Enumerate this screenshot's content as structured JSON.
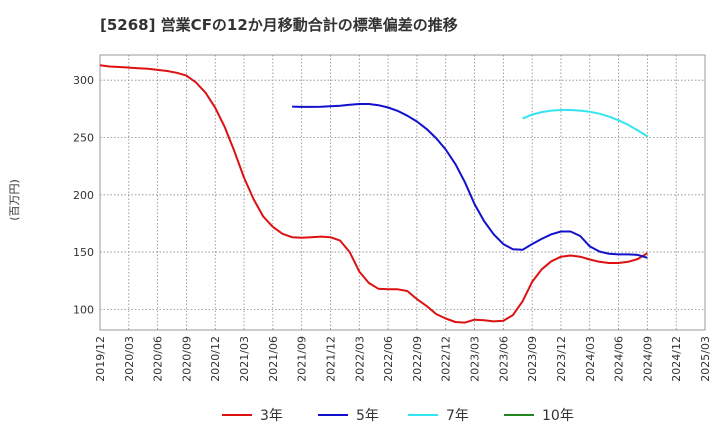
{
  "chart_data": {
    "type": "line",
    "title": "[5268]  営業CFの12か月移動合計の標準偏差の推移",
    "ylabel": "(百万円)",
    "xlabel": "",
    "ylim": [
      82,
      322
    ],
    "yticks": [
      100,
      150,
      200,
      250,
      300
    ],
    "xlim": [
      "2019-12",
      "2025-03"
    ],
    "xticks": [
      "2019/12",
      "2020/03",
      "2020/06",
      "2020/09",
      "2020/12",
      "2021/03",
      "2021/06",
      "2021/09",
      "2021/12",
      "2022/03",
      "2022/06",
      "2022/09",
      "2022/12",
      "2023/03",
      "2023/06",
      "2023/09",
      "2023/12",
      "2024/03",
      "2024/06",
      "2024/09",
      "2024/12",
      "2025/03"
    ],
    "grid": true,
    "legend_position": "bottom",
    "series": [
      {
        "name": "3年",
        "color": "#dd1111",
        "points": [
          [
            "2019-12",
            313
          ],
          [
            "2020-01",
            312
          ],
          [
            "2020-02",
            311.5
          ],
          [
            "2020-03",
            311
          ],
          [
            "2020-04",
            310.5
          ],
          [
            "2020-05",
            310
          ],
          [
            "2020-06",
            309
          ],
          [
            "2020-07",
            308
          ],
          [
            "2020-08",
            306.5
          ],
          [
            "2020-09",
            304
          ],
          [
            "2020-10",
            298
          ],
          [
            "2020-11",
            289
          ],
          [
            "2020-12",
            276
          ],
          [
            "2021-01",
            259
          ],
          [
            "2021-02",
            238
          ],
          [
            "2021-03",
            215
          ],
          [
            "2021-04",
            196
          ],
          [
            "2021-05",
            181
          ],
          [
            "2021-06",
            172
          ],
          [
            "2021-07",
            166
          ],
          [
            "2021-08",
            163
          ],
          [
            "2021-09",
            162.5
          ],
          [
            "2021-10",
            163
          ],
          [
            "2021-11",
            163.5
          ],
          [
            "2021-12",
            163
          ],
          [
            "2022-01",
            160
          ],
          [
            "2022-02",
            150
          ],
          [
            "2022-03",
            133
          ],
          [
            "2022-04",
            123
          ],
          [
            "2022-05",
            118
          ],
          [
            "2022-06",
            117.5
          ],
          [
            "2022-07",
            117.5
          ],
          [
            "2022-08",
            116
          ],
          [
            "2022-09",
            109
          ],
          [
            "2022-10",
            103
          ],
          [
            "2022-11",
            96
          ],
          [
            "2022-12",
            92
          ],
          [
            "2023-01",
            89
          ],
          [
            "2023-02",
            88.5
          ],
          [
            "2023-03",
            91
          ],
          [
            "2023-04",
            90.5
          ],
          [
            "2023-05",
            89.5
          ],
          [
            "2023-06",
            90
          ],
          [
            "2023-07",
            95
          ],
          [
            "2023-08",
            107
          ],
          [
            "2023-09",
            124
          ],
          [
            "2023-10",
            135
          ],
          [
            "2023-11",
            142
          ],
          [
            "2023-12",
            146
          ],
          [
            "2024-01",
            147
          ],
          [
            "2024-02",
            146
          ],
          [
            "2024-03",
            143.5
          ],
          [
            "2024-04",
            141.5
          ],
          [
            "2024-05",
            140.5
          ],
          [
            "2024-06",
            140.5
          ],
          [
            "2024-07",
            141.5
          ],
          [
            "2024-08",
            144
          ],
          [
            "2024-09",
            149
          ]
        ]
      },
      {
        "name": "5年",
        "color": "#1111cc",
        "points": [
          [
            "2021-08",
            277
          ],
          [
            "2021-09",
            276.7
          ],
          [
            "2021-10",
            276.7
          ],
          [
            "2021-11",
            276.8
          ],
          [
            "2021-12",
            277.2
          ],
          [
            "2022-01",
            277.7
          ],
          [
            "2022-02",
            278.5
          ],
          [
            "2022-03",
            279.2
          ],
          [
            "2022-04",
            279.2
          ],
          [
            "2022-05",
            278.2
          ],
          [
            "2022-06",
            276.2
          ],
          [
            "2022-07",
            273.2
          ],
          [
            "2022-08",
            269
          ],
          [
            "2022-09",
            264
          ],
          [
            "2022-10",
            257.5
          ],
          [
            "2022-11",
            249.5
          ],
          [
            "2022-12",
            239.5
          ],
          [
            "2023-01",
            227
          ],
          [
            "2023-02",
            211
          ],
          [
            "2023-03",
            192
          ],
          [
            "2023-04",
            177
          ],
          [
            "2023-05",
            165.5
          ],
          [
            "2023-06",
            157
          ],
          [
            "2023-07",
            152.5
          ],
          [
            "2023-08",
            152
          ],
          [
            "2023-09",
            157
          ],
          [
            "2023-10",
            161.5
          ],
          [
            "2023-11",
            165.5
          ],
          [
            "2023-12",
            168
          ],
          [
            "2024-01",
            168
          ],
          [
            "2024-02",
            164
          ],
          [
            "2024-03",
            155
          ],
          [
            "2024-04",
            150.5
          ],
          [
            "2024-05",
            148.5
          ],
          [
            "2024-06",
            148
          ],
          [
            "2024-07",
            148
          ],
          [
            "2024-08",
            147.5
          ],
          [
            "2024-09",
            145
          ]
        ]
      },
      {
        "name": "7年",
        "color": "#33e5f0",
        "points": [
          [
            "2023-08",
            266.5
          ],
          [
            "2023-09",
            270
          ],
          [
            "2023-10",
            272.2
          ],
          [
            "2023-11",
            273.5
          ],
          [
            "2023-12",
            274
          ],
          [
            "2024-01",
            274
          ],
          [
            "2024-02",
            273.5
          ],
          [
            "2024-03",
            272.5
          ],
          [
            "2024-04",
            270.8
          ],
          [
            "2024-05",
            268.2
          ],
          [
            "2024-06",
            265
          ],
          [
            "2024-07",
            261
          ],
          [
            "2024-08",
            256.2
          ],
          [
            "2024-09",
            251
          ]
        ]
      },
      {
        "name": "10年",
        "color": "#228822",
        "points": []
      }
    ]
  }
}
